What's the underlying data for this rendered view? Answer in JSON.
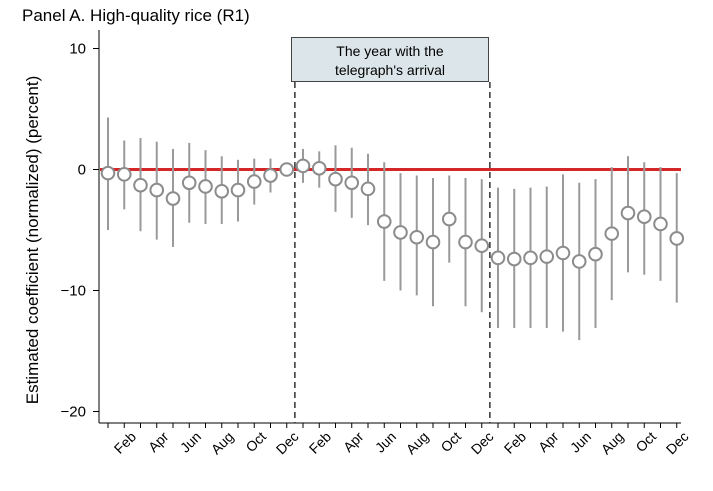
{
  "panel_title": "Panel A. High-quality rice (R1)",
  "annotation": {
    "line1": "The year with the",
    "line2": "telegraph's arrival"
  },
  "colors": {
    "marker": "#8c8c8c",
    "ci_line": "#9a9a9a",
    "zero_line": "#d62728",
    "annotation_bg": "#dce6ea",
    "divider": "#333333",
    "axis": "#000000"
  },
  "chart_data": {
    "type": "scatter",
    "title": "Panel A. High-quality rice (R1)",
    "ylabel": "Estimated coefficient (normalized) (percent)",
    "xlabel": "",
    "ylim": [
      -21,
      10.5
    ],
    "yticks": [
      10,
      0,
      -10,
      -20
    ],
    "ytick_labels": [
      "10",
      "0",
      "−10",
      "−20"
    ],
    "x": [
      1,
      2,
      3,
      4,
      5,
      6,
      7,
      8,
      9,
      10,
      11,
      12,
      13,
      14,
      15,
      16,
      17,
      18,
      19,
      20,
      21,
      22,
      23,
      24,
      25,
      26,
      27,
      28,
      29,
      30,
      31,
      32,
      33,
      34,
      35,
      36
    ],
    "x_tick_positions": [
      2,
      4,
      6,
      8,
      10,
      12,
      14,
      16,
      18,
      20,
      22,
      24,
      26,
      28,
      30,
      32,
      34,
      36
    ],
    "x_tick_labels": [
      "Feb",
      "Apr",
      "Jun",
      "Aug",
      "Oct",
      "Dec",
      "Feb",
      "Apr",
      "Jun",
      "Aug",
      "Oct",
      "Dec",
      "Feb",
      "Apr",
      "Jun",
      "Aug",
      "Oct",
      "Dec"
    ],
    "series": [
      {
        "estimate": [
          -0.3,
          -0.4,
          -1.3,
          -1.7,
          -2.4,
          -1.1,
          -1.4,
          -1.8,
          -1.7,
          -1.0,
          -0.5,
          0,
          0.3,
          0.1,
          -0.8,
          -1.1,
          -1.6,
          -4.3,
          -5.2,
          -5.6,
          -6.0,
          -4.1,
          -6.0,
          -6.3,
          -7.3,
          -7.4,
          -7.3,
          -7.2,
          -6.9,
          -7.6,
          -7.0,
          -5.3,
          -3.6,
          -3.9,
          -4.5,
          -5.7
        ],
        "ci_lower": [
          -5.0,
          -3.3,
          -5.1,
          -5.8,
          -6.4,
          -4.4,
          -4.5,
          -4.5,
          -4.3,
          -2.9,
          -1.9,
          0,
          -1.1,
          -1.5,
          -3.5,
          -4.0,
          -4.6,
          -9.2,
          -10.0,
          -10.4,
          -11.3,
          -7.7,
          -11.3,
          -11.8,
          -13.1,
          -13.1,
          -13.1,
          -13.1,
          -13.4,
          -14.1,
          -13.1,
          -10.8,
          -8.5,
          -8.7,
          -9.2,
          -11.0
        ],
        "ci_upper": [
          4.3,
          2.4,
          2.6,
          2.3,
          1.7,
          2.2,
          1.6,
          1.1,
          0.8,
          0.9,
          0.9,
          0,
          1.7,
          1.5,
          2.0,
          1.8,
          1.3,
          0.6,
          -0.3,
          -0.5,
          -0.7,
          -0.5,
          -0.7,
          -0.8,
          -1.5,
          -1.6,
          -1.5,
          -1.4,
          -0.4,
          -1.1,
          -0.8,
          0.2,
          1.1,
          0.6,
          0.2,
          -0.3
        ]
      }
    ],
    "reference_line_y": 0,
    "vertical_divider_x": [
      12.5,
      24.5
    ],
    "annotation_span_x": [
      12.5,
      24.5
    ],
    "grid": false
  }
}
